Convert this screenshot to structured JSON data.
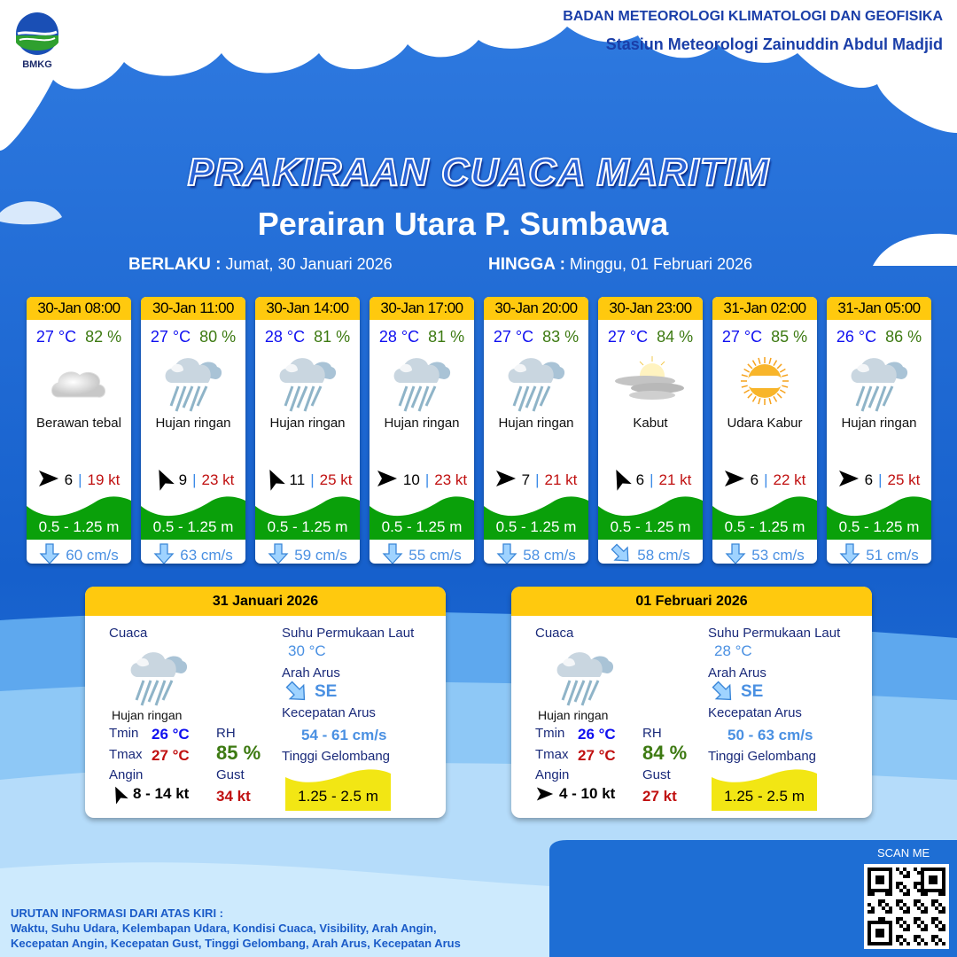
{
  "header": {
    "agency": "BADAN METEOROLOGI KLIMATOLOGI DAN GEOFISIKA",
    "station": "Stasiun Meteorologi Zainuddin Abdul Madjid",
    "logo_text": "BMKG"
  },
  "title": "PRAKIRAAN CUACA MARITIM",
  "subtitle": "Perairan Utara P. Sumbawa",
  "validity": {
    "from_label": "BERLAKU :",
    "from": "Jumat, 30 Januari 2026",
    "to_label": "HINGGA :",
    "to": "Minggu, 01 Februari 2026"
  },
  "colors": {
    "header_yellow": "#ffc90e",
    "wave_green": "#0aa00a",
    "wave_yellow": "#f2e614",
    "temp_blue": "#1010f0",
    "humidity_green": "#3d7a12",
    "gust_red": "#c01010",
    "current_blue": "#4a90e2"
  },
  "forecasts": [
    {
      "time": "30-Jan 08:00",
      "temp": "27 °C",
      "rh": "82 %",
      "icon": "cloudy-icon",
      "condition": "Berawan tebal",
      "wind_dir": "arrow-east",
      "wind_speed": "6",
      "gust": "19 kt",
      "wave": "0.5 - 1.25 m",
      "current_dir": "arrow-south",
      "current": "60 cm/s"
    },
    {
      "time": "30-Jan 11:00",
      "temp": "27 °C",
      "rh": "80 %",
      "icon": "light-rain-icon",
      "condition": "Hujan ringan",
      "wind_dir": "arrow-northwest",
      "wind_speed": "9",
      "gust": "23 kt",
      "wave": "0.5 - 1.25 m",
      "current_dir": "arrow-south",
      "current": "63 cm/s"
    },
    {
      "time": "30-Jan 14:00",
      "temp": "28 °C",
      "rh": "81 %",
      "icon": "light-rain-icon",
      "condition": "Hujan ringan",
      "wind_dir": "arrow-northwest",
      "wind_speed": "11",
      "gust": "25 kt",
      "wave": "0.5 - 1.25 m",
      "current_dir": "arrow-south",
      "current": "59 cm/s"
    },
    {
      "time": "30-Jan 17:00",
      "temp": "28 °C",
      "rh": "81 %",
      "icon": "light-rain-icon",
      "condition": "Hujan ringan",
      "wind_dir": "arrow-east",
      "wind_speed": "10",
      "gust": "23 kt",
      "wave": "0.5 - 1.25 m",
      "current_dir": "arrow-south",
      "current": "55 cm/s"
    },
    {
      "time": "30-Jan 20:00",
      "temp": "27 °C",
      "rh": "83 %",
      "icon": "light-rain-icon",
      "condition": "Hujan ringan",
      "wind_dir": "arrow-east",
      "wind_speed": "7",
      "gust": "21 kt",
      "wave": "0.5 - 1.25 m",
      "current_dir": "arrow-south",
      "current": "58 cm/s"
    },
    {
      "time": "30-Jan 23:00",
      "temp": "27 °C",
      "rh": "84 %",
      "icon": "fog-icon",
      "condition": "Kabut",
      "wind_dir": "arrow-northwest",
      "wind_speed": "6",
      "gust": "21 kt",
      "wave": "0.5 - 1.25 m",
      "current_dir": "arrow-southeast",
      "current": "58 cm/s"
    },
    {
      "time": "31-Jan 02:00",
      "temp": "27 °C",
      "rh": "85 %",
      "icon": "haze-icon",
      "condition": "Udara Kabur",
      "wind_dir": "arrow-east",
      "wind_speed": "6",
      "gust": "22 kt",
      "wave": "0.5 - 1.25 m",
      "current_dir": "arrow-south",
      "current": "53 cm/s"
    },
    {
      "time": "31-Jan 05:00",
      "temp": "26 °C",
      "rh": "86 %",
      "icon": "light-rain-icon",
      "condition": "Hujan ringan",
      "wind_dir": "arrow-east",
      "wind_speed": "6",
      "gust": "25 kt",
      "wave": "0.5 - 1.25 m",
      "current_dir": "arrow-south",
      "current": "51 cm/s"
    }
  ],
  "labels": {
    "weather": "Cuaca",
    "sst": "Suhu Permukaan Laut",
    "current_dir": "Arah Arus",
    "current_speed": "Kecepatan Arus",
    "wave": "Tinggi Gelombang",
    "tmin": "Tmin",
    "tmax": "Tmax",
    "rh": "RH",
    "wind": "Angin",
    "gust": "Gust"
  },
  "daily": [
    {
      "date": "31 Januari 2026",
      "icon": "light-rain-icon",
      "condition": "Hujan ringan",
      "tmin": "26 °C",
      "tmax": "27 °C",
      "rh": "85 %",
      "wind_dir": "arrow-northwest",
      "wind": "8  - 14 kt",
      "gust": "34 kt",
      "sst": "30 °C",
      "current_dir": "SE",
      "current_speed": "54 - 61 cm/s",
      "wave": "1.25 - 2.5 m"
    },
    {
      "date": "01 Februari 2026",
      "icon": "light-rain-icon",
      "condition": "Hujan ringan",
      "tmin": "26 °C",
      "tmax": "27 °C",
      "rh": "84 %",
      "wind_dir": "arrow-east",
      "wind": "4  - 10 kt",
      "gust": "27 kt",
      "sst": "28 °C",
      "current_dir": "SE",
      "current_speed": "50 - 63 cm/s",
      "wave": "1.25 - 2.5 m"
    }
  ],
  "footer": {
    "title": "URUTAN INFORMASI DARI ATAS KIRI :",
    "line1": "Waktu, Suhu Udara, Kelembapan Udara, Kondisi Cuaca, Visibility, Arah Angin,",
    "line2": "Kecepatan Angin, Kecepatan Gust, Tinggi Gelombang, Arah Arus, Kecepatan Arus",
    "scan": "SCAN ME"
  }
}
